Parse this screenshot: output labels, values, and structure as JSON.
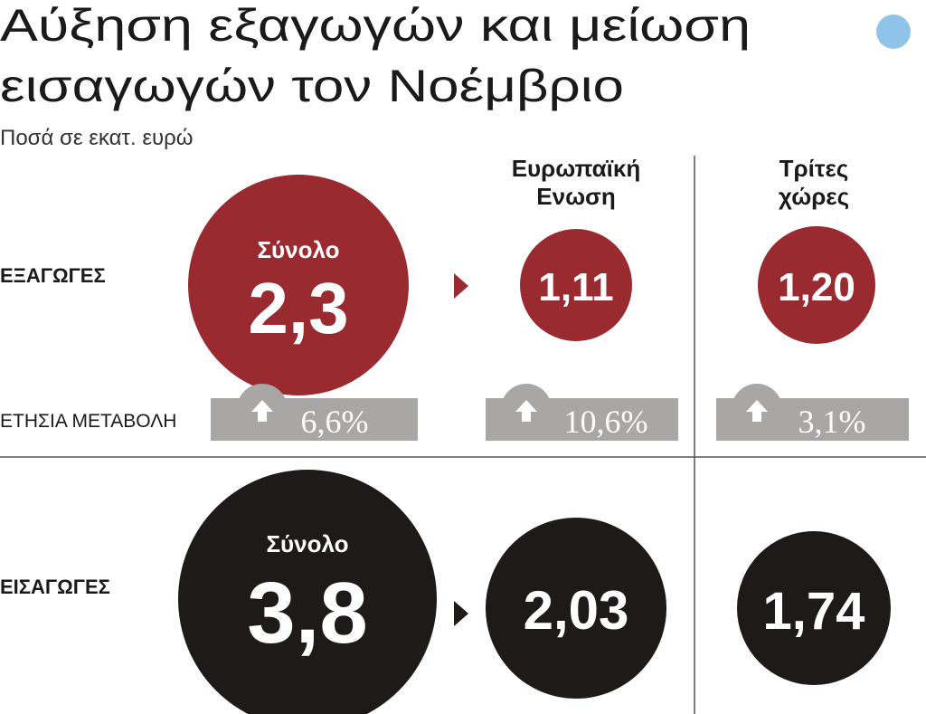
{
  "header": {
    "title_lines": [
      "Αύξηση εξαγωγών και μείωση",
      "εισαγωγών τον Νοέμβριο"
    ],
    "subtitle": "Ποσά σε εκατ. ευρώ"
  },
  "columns": [
    "Ευρωπαϊκή",
    "Ενωση",
    "Τρίτες",
    "χώρες"
  ],
  "exports": {
    "label": "ΕΞΑΓΩΓΕΣ",
    "total_label": "Σύνολο",
    "total": "2,3",
    "values": [
      "1,11",
      "1,20"
    ],
    "change_label": "ΕΤΗΣΙΑ ΜΕΤΑΒΟΛΗ",
    "changes": [
      "6,6%",
      "10,6%",
      "3,1%"
    ]
  },
  "imports": {
    "label": "ΕΙΣΑΓΩΓΕΣ",
    "total_label": "Σύνολο",
    "total": "3,8",
    "values": [
      "2,03",
      "1,74"
    ]
  }
}
